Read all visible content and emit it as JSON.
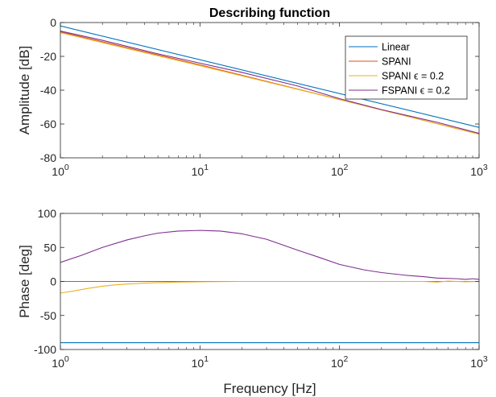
{
  "chart_data": [
    {
      "type": "line",
      "title": "Describing function",
      "xlabel": "",
      "ylabel": "Amplitude [dB]",
      "xscale": "log",
      "xlim": [
        1,
        1000
      ],
      "ylim": [
        -80,
        0
      ],
      "yticks": [
        0,
        -20,
        -40,
        -60,
        -80
      ],
      "ytick_labels": [
        "0",
        "-20",
        "-40",
        "-60",
        "-80"
      ],
      "xtick_labels": [
        {
          "base": "10",
          "exp": "0"
        },
        {
          "base": "10",
          "exp": "1"
        },
        {
          "base": "10",
          "exp": "2"
        },
        {
          "base": "10",
          "exp": "3"
        }
      ],
      "legend_position": "top-right",
      "series": [
        {
          "name": "Linear",
          "color": "#0072BD",
          "x": [
            1,
            1000
          ],
          "y": [
            -2,
            -62
          ]
        },
        {
          "name": "SPANI",
          "color": "#D95319",
          "x": [
            1,
            10,
            100,
            1000
          ],
          "y": [
            -5.5,
            -25,
            -45.5,
            -66
          ]
        },
        {
          "name": "SPANI ϵ = 0.2",
          "color": "#EDB120",
          "x": [
            1,
            10,
            100,
            1000
          ],
          "y": [
            -6,
            -25.5,
            -45.5,
            -66
          ]
        },
        {
          "name": "FSPANI ϵ = 0.2",
          "color": "#7E2F8E",
          "x": [
            1,
            2,
            5,
            10,
            20,
            50,
            100,
            200,
            500,
            1000
          ],
          "y": [
            -5,
            -10.5,
            -18.5,
            -24,
            -29.5,
            -37.5,
            -45,
            -51.5,
            -59,
            -65.5
          ]
        }
      ]
    },
    {
      "type": "line",
      "title": "",
      "xlabel": "Frequency [Hz]",
      "ylabel": "Phase [deg]",
      "xscale": "log",
      "xlim": [
        1,
        1000
      ],
      "ylim": [
        -100,
        100
      ],
      "yticks": [
        100,
        50,
        0,
        -50,
        -100
      ],
      "ytick_labels": [
        "100",
        "50",
        "0",
        "-50",
        "-100"
      ],
      "xtick_labels": [
        {
          "base": "10",
          "exp": "0"
        },
        {
          "base": "10",
          "exp": "1"
        },
        {
          "base": "10",
          "exp": "2"
        },
        {
          "base": "10",
          "exp": "3"
        }
      ],
      "series": [
        {
          "name": "Linear",
          "color": "#0072BD",
          "x": [
            1,
            1000
          ],
          "y": [
            -90,
            -90
          ]
        },
        {
          "name": "SPANI",
          "color": "#D95319",
          "x": [
            1,
            1000
          ],
          "y": [
            0,
            0
          ]
        },
        {
          "name": "SPANI ϵ = 0.2",
          "color": "#EDB120",
          "x": [
            1,
            1.25,
            1.6,
            2,
            2.5,
            3.2,
            4,
            5,
            7,
            10,
            20,
            50,
            100,
            200,
            400,
            500,
            600,
            800,
            1000
          ],
          "y": [
            -17,
            -14,
            -10,
            -7,
            -5,
            -3.5,
            -2.5,
            -1.8,
            -1,
            -0.5,
            0,
            0,
            0,
            0,
            0,
            -1,
            0.5,
            -0.5,
            0
          ]
        },
        {
          "name": "FSPANI ϵ = 0.2",
          "color": "#7E2F8E",
          "x": [
            1,
            1.4,
            2,
            3,
            4,
            5,
            7,
            10,
            14,
            20,
            30,
            50,
            70,
            100,
            150,
            200,
            300,
            400,
            500,
            700,
            800,
            900,
            1000
          ],
          "y": [
            28,
            38,
            50,
            61,
            67,
            71,
            74,
            75,
            74,
            70,
            62,
            46,
            36,
            25,
            17,
            13,
            9,
            7,
            5,
            4,
            3,
            4,
            3
          ]
        }
      ]
    }
  ]
}
